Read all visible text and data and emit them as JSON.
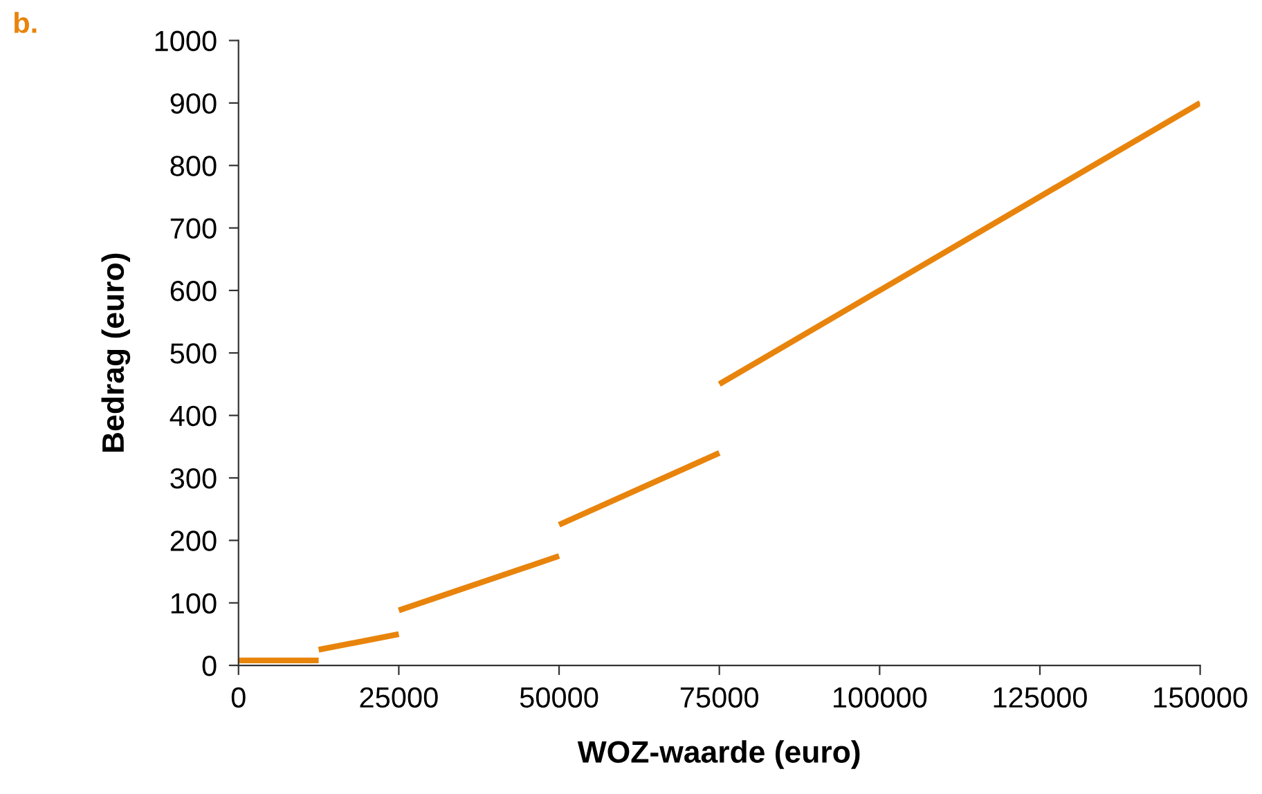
{
  "chart_data": {
    "type": "line",
    "title": "b.",
    "xlabel": "WOZ-waarde (euro)",
    "ylabel": "Bedrag (euro)",
    "series": [
      {
        "color": "#e8840c",
        "x": [
          0,
          12500
        ],
        "values": [
          8,
          8
        ]
      },
      {
        "color": "#e8840c",
        "x": [
          12500,
          25000
        ],
        "values": [
          25,
          50
        ]
      },
      {
        "color": "#e8840c",
        "x": [
          25000,
          50000
        ],
        "values": [
          88,
          175
        ]
      },
      {
        "color": "#e8840c",
        "x": [
          50000,
          75000
        ],
        "values": [
          225,
          340
        ]
      },
      {
        "color": "#e8840c",
        "x": [
          75000,
          150000
        ],
        "values": [
          450,
          900
        ]
      }
    ],
    "xlim": [
      0,
      150000
    ],
    "xticks": [
      0,
      25000,
      50000,
      75000,
      100000,
      125000,
      150000
    ],
    "ylim": [
      0,
      1000
    ],
    "yticks": [
      0,
      100,
      200,
      300,
      400,
      500,
      600,
      700,
      800,
      900,
      1000
    ],
    "grid": false,
    "legend": false,
    "marker": "none",
    "line_style": "solid"
  }
}
